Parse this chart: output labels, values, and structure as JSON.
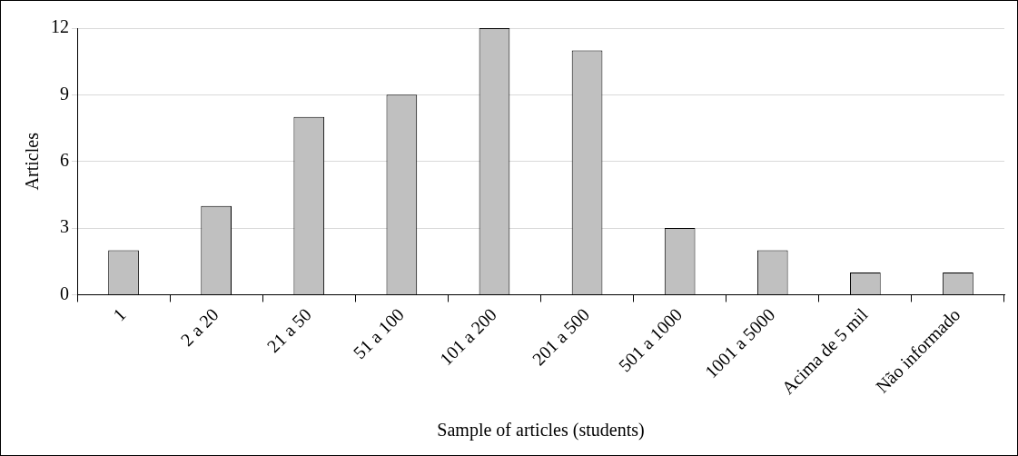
{
  "chart_data": {
    "type": "bar",
    "xlabel": "Sample of articles (students)",
    "ylabel": "Articles",
    "categories": [
      "1",
      "2 a 20",
      "21 a 50",
      "51 a 100",
      "101 a 200",
      "201 a 500",
      "501 a 1000",
      "1001 a 5000",
      "Acima de 5 mil",
      "Não informado"
    ],
    "values": [
      2,
      4,
      8,
      9,
      12,
      11,
      3,
      2,
      1,
      1
    ],
    "color": "#c0c0c0",
    "ylim": [
      0,
      12
    ],
    "yticks": [
      0,
      3,
      6,
      9,
      12
    ],
    "grid": "y",
    "legend": false
  }
}
